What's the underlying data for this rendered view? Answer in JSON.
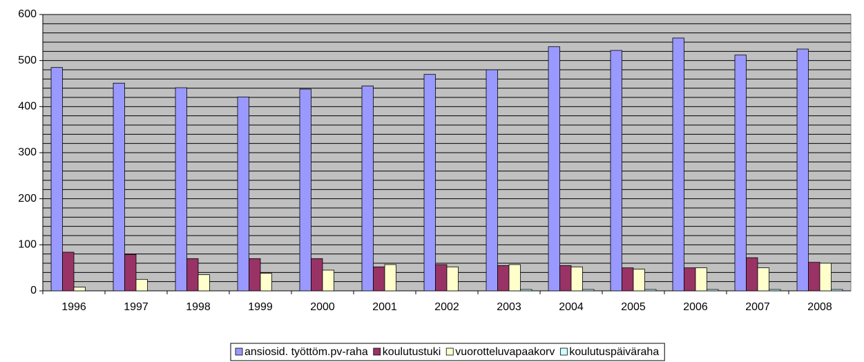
{
  "chart_data": {
    "type": "bar",
    "categories": [
      "1996",
      "1997",
      "1998",
      "1999",
      "2000",
      "2001",
      "2002",
      "2003",
      "2004",
      "2005",
      "2006",
      "2007",
      "2008"
    ],
    "series": [
      {
        "name": "ansiosid. työttöm.pv-raha",
        "color": "#9999ff",
        "values": [
          485,
          451,
          441,
          421,
          438,
          445,
          470,
          480,
          530,
          522,
          549,
          512,
          525
        ]
      },
      {
        "name": "koulutustuki",
        "color": "#993366",
        "values": [
          84,
          79,
          70,
          70,
          70,
          52,
          57,
          55,
          55,
          50,
          50,
          72,
          62
        ]
      },
      {
        "name": "vuorotteluvapaakorv",
        "color": "#ffffcc",
        "values": [
          8,
          25,
          35,
          38,
          45,
          57,
          52,
          57,
          52,
          47,
          50,
          50,
          60
        ]
      },
      {
        "name": "koulutuspäiväraha",
        "color": "#ccffff",
        "values": [
          0,
          0,
          0,
          0,
          0,
          0,
          0,
          3,
          3,
          3,
          3,
          3,
          3
        ]
      }
    ],
    "ylim": [
      0,
      600
    ],
    "yticks": [
      0,
      100,
      200,
      300,
      400,
      500,
      600
    ],
    "minor_gridlines": [
      20,
      40,
      60,
      80,
      120,
      140,
      160,
      180,
      220,
      240,
      260,
      280,
      320,
      340,
      360,
      380,
      420,
      440,
      460,
      480,
      520,
      540,
      560,
      580
    ],
    "grid": true,
    "legend": "bottom",
    "plot_background": "#c0c0c0"
  }
}
